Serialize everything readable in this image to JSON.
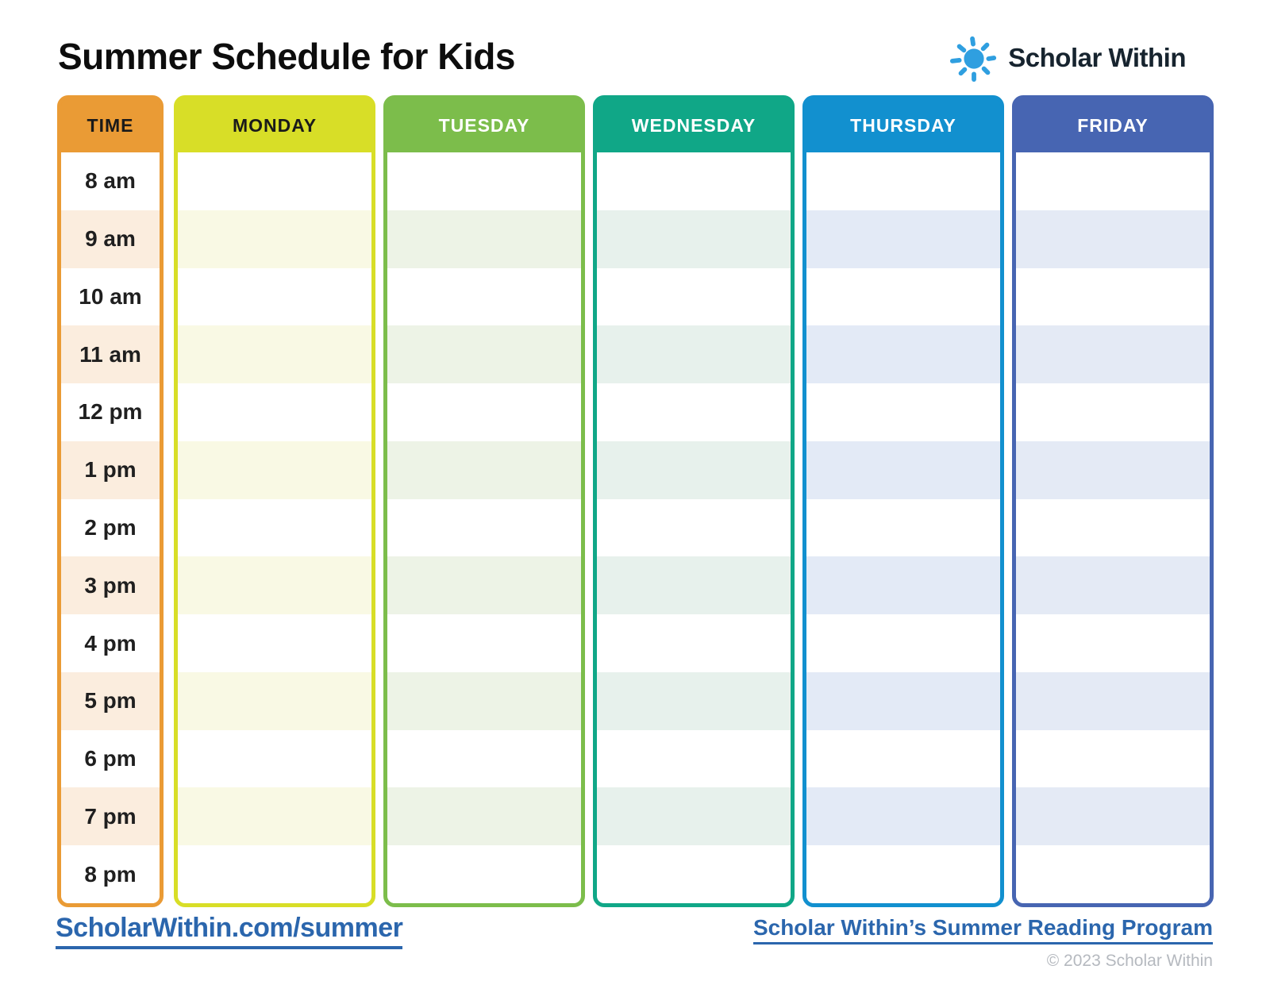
{
  "title": "Summer Schedule for Kids",
  "logo": {
    "brand": "Scholar Within",
    "sun_icon_color": "#2f9fe0",
    "text_color": "#17242f"
  },
  "schedule": {
    "time_column": {
      "header": "TIME",
      "header_color": "#ea9b35",
      "header_text_color": "#1a1a1a",
      "stripe_color": "#fbedde",
      "times": [
        "8 am",
        "9 am",
        "10 am",
        "11 am",
        "12 pm",
        "1 pm",
        "2 pm",
        "3 pm",
        "4 pm",
        "5 pm",
        "6 pm",
        "7 pm",
        "8 pm"
      ]
    },
    "day_columns": [
      {
        "label": "MONDAY",
        "color": "#d8de27",
        "header_text_color": "#1a1a1a",
        "stripe_color": "#f9f9e4"
      },
      {
        "label": "TUESDAY",
        "color": "#7cbd4b",
        "header_text_color": "#ffffff",
        "stripe_color": "#edf3e6"
      },
      {
        "label": "WEDNESDAY",
        "color": "#10a787",
        "header_text_color": "#ffffff",
        "stripe_color": "#e7f1ec"
      },
      {
        "label": "THURSDAY",
        "color": "#1290cf",
        "header_text_color": "#ffffff",
        "stripe_color": "#e3eaf6"
      },
      {
        "label": "FRIDAY",
        "color": "#4765b2",
        "header_text_color": "#ffffff",
        "stripe_color": "#e4eaf5"
      }
    ],
    "rows_per_column": 13
  },
  "footer": {
    "left_link": "ScholarWithin.com/summer",
    "right_link": "Scholar Within’s Summer Reading Program",
    "copyright": "© 2023 Scholar Within",
    "link_color": "#2b66ad"
  }
}
